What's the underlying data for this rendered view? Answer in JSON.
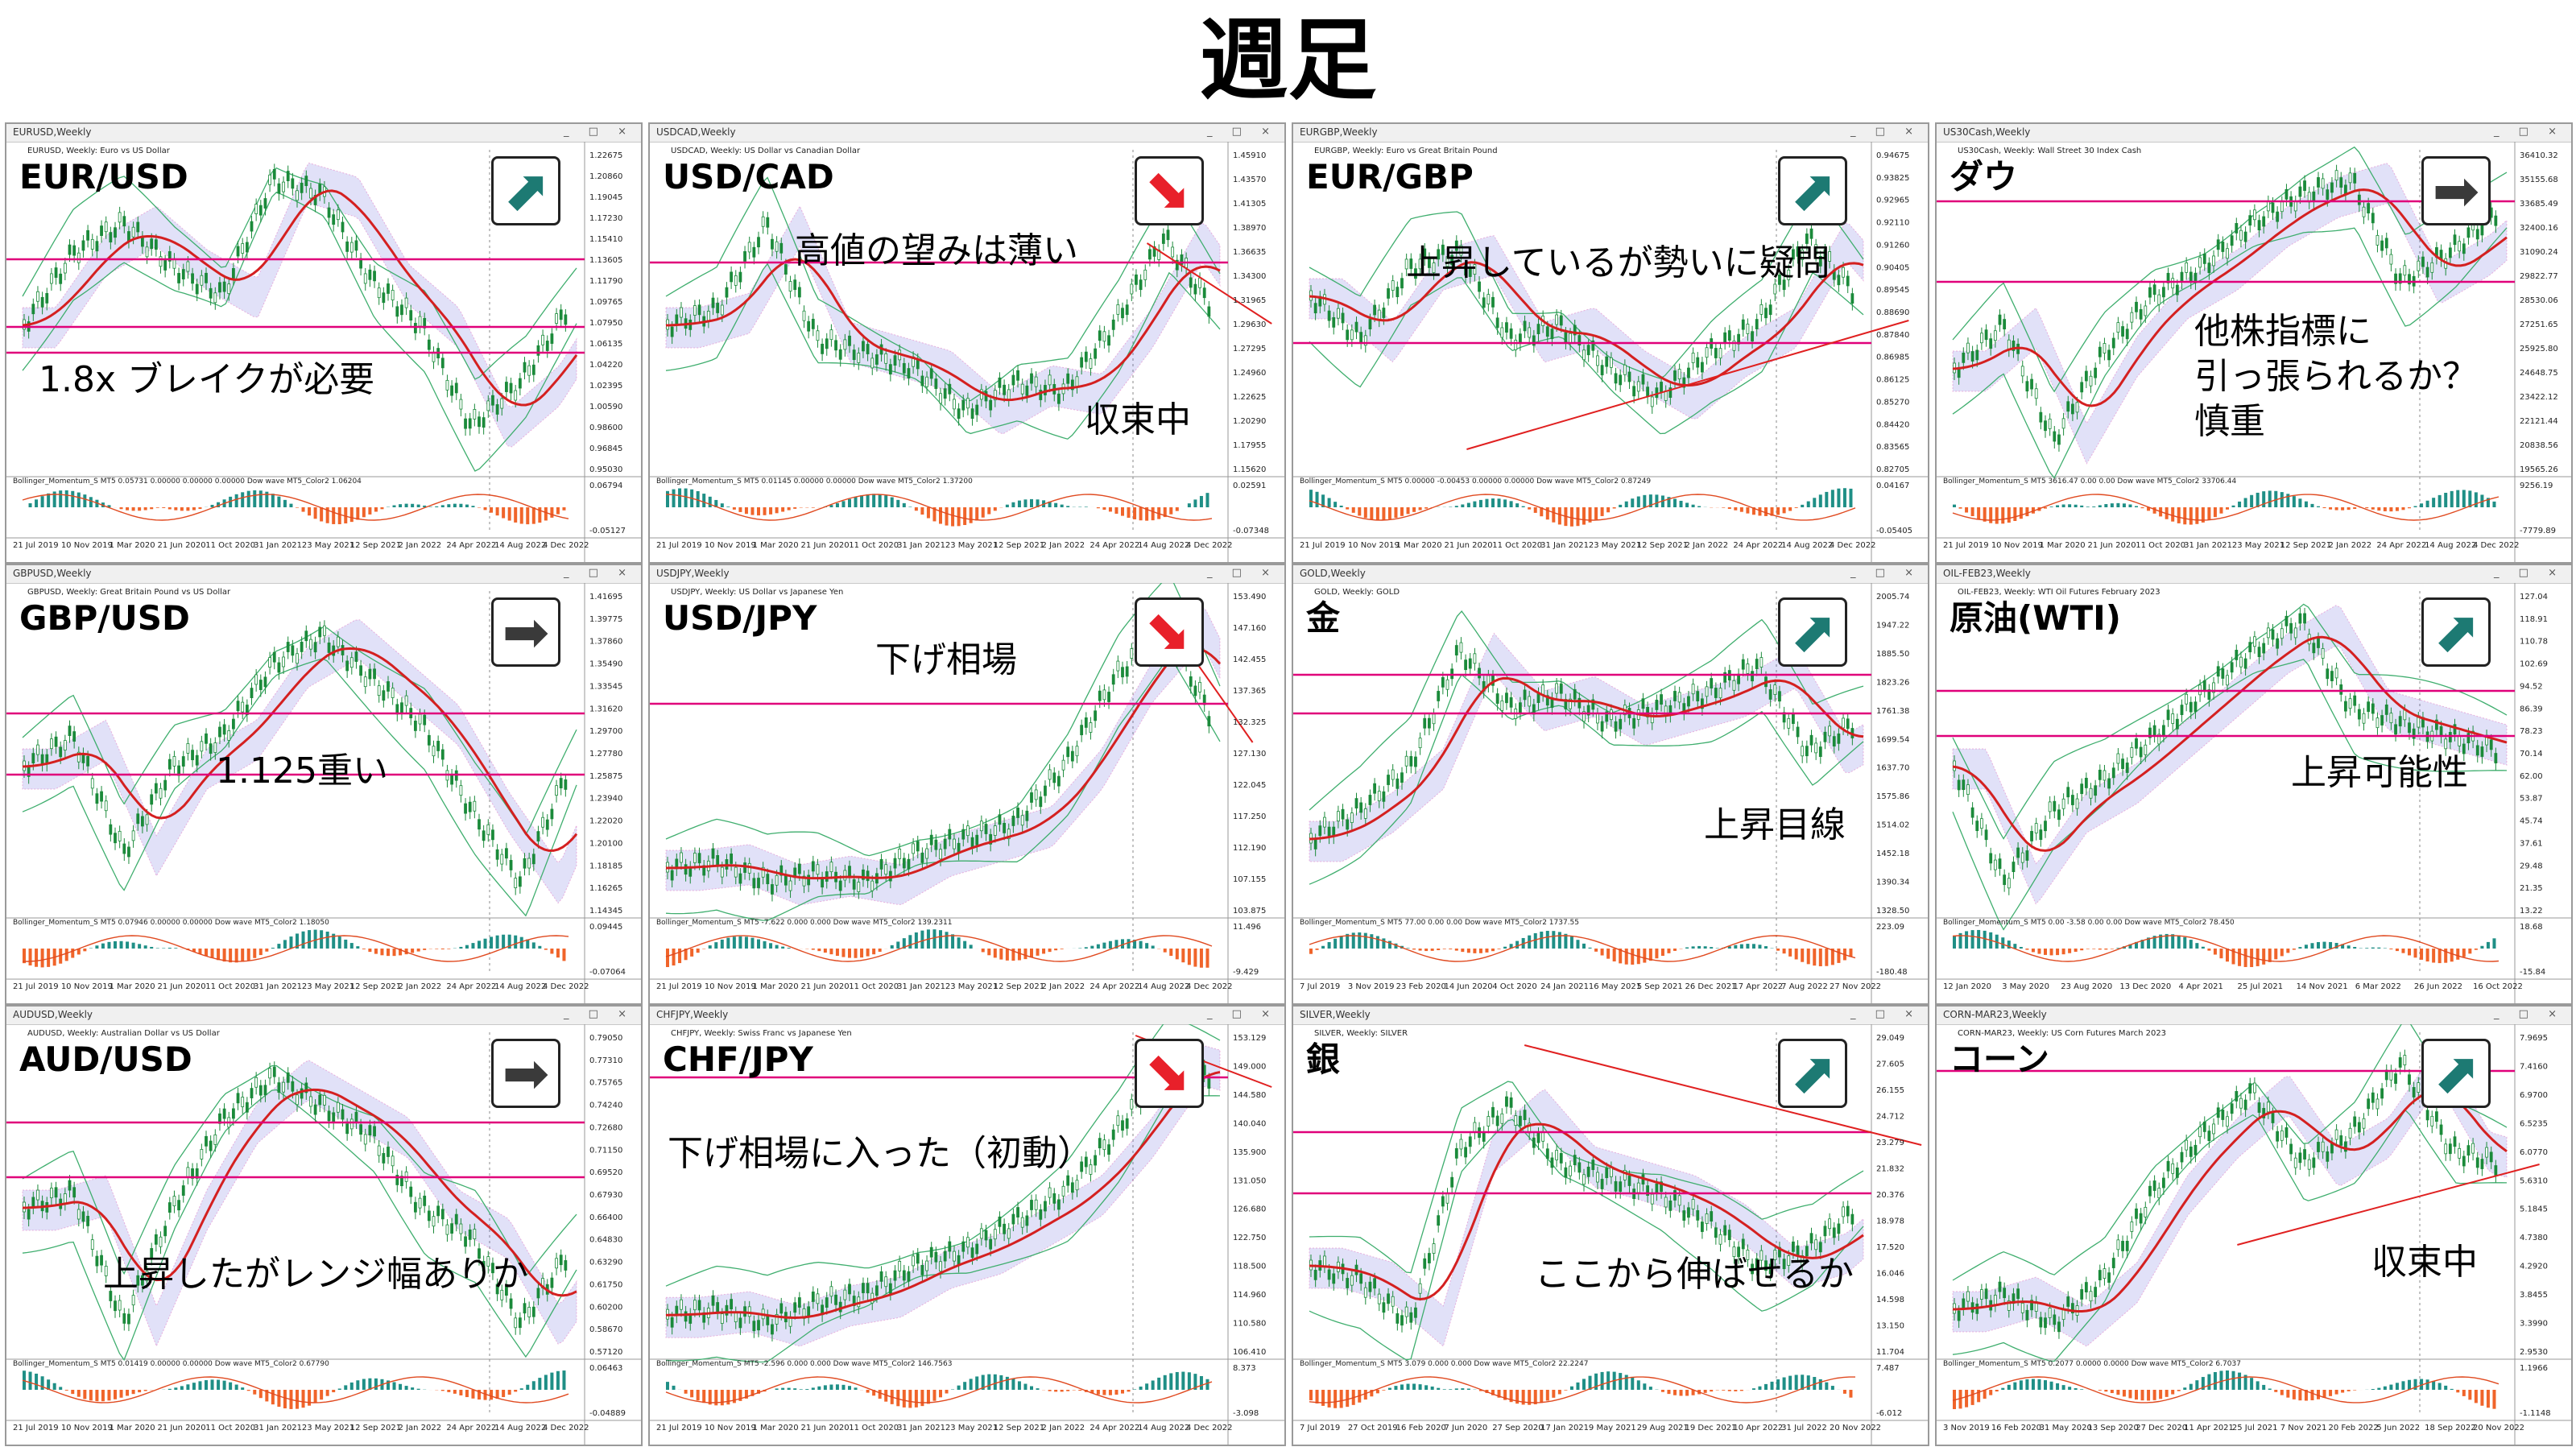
{
  "page_title": "週足",
  "colors": {
    "pink_line": "#e0007a",
    "ma_line": "#d42020",
    "band_line": "#3fae6e",
    "cloud_blue": "#5b5bd6",
    "cloud_pink": "#e070c0",
    "candle": "#1b8a3a",
    "hist_orange": "#f0642a",
    "hist_teal": "#1f8f86",
    "arrow_up": "#1d7a73",
    "arrow_down": "#e8202a",
    "arrow_flat": "#3a3a3a"
  },
  "panels": [
    {
      "window_title": "EURUSD,Weekly",
      "subinfo": "EURUSD, Weekly: Euro vs US Dollar",
      "pair": "EUR/USD",
      "note": "1.8x ブレイクが必要",
      "arrow": "up",
      "indicator": "Bollinger_Momentum_S MT5 0.05731 0.00000 0.00000 0.00000 Dow wave MT5_Color2 1.06204",
      "y_labels": [
        "1.22675",
        "1.20860",
        "1.19045",
        "1.17230",
        "1.15410",
        "1.13605",
        "1.11790",
        "1.09765",
        "1.07950",
        "1.06135",
        "1.04220",
        "1.02395",
        "1.00590",
        "0.98600",
        "0.96845",
        "0.95030"
      ],
      "ind_labels": [
        "0.06794",
        "-0.05127"
      ],
      "x_labels": [
        "21 Jul 2019",
        "10 Nov 2019",
        "1 Mar 2020",
        "21 Jun 2020",
        "11 Oct 2020",
        "31 Jan 2021",
        "23 May 2021",
        "12 Sep 2021",
        "2 Jan 2022",
        "24 Apr 2022",
        "14 Aug 2022",
        "4 Dec 2022"
      ]
    },
    {
      "window_title": "USDCAD,Weekly",
      "subinfo": "USDCAD, Weekly: US Dollar vs Canadian Dollar",
      "pair": "USD/CAD",
      "note": "高値の望みは薄い",
      "note2": "収束中",
      "arrow": "down",
      "indicator": "Bollinger_Momentum_S MT5 0.01145 0.00000 0.00000 Dow wave MT5_Color2 1.37200",
      "y_labels": [
        "1.45910",
        "1.43570",
        "1.41305",
        "1.38970",
        "1.36635",
        "1.34300",
        "1.31965",
        "1.29630",
        "1.27295",
        "1.24960",
        "1.22625",
        "1.20290",
        "1.17955",
        "1.15620"
      ],
      "ind_labels": [
        "0.02591",
        "-0.07348"
      ],
      "x_labels": [
        "21 Jul 2019",
        "10 Nov 2019",
        "1 Mar 2020",
        "21 Jun 2020",
        "11 Oct 2020",
        "31 Jan 2021",
        "23 May 2021",
        "12 Sep 2021",
        "2 Jan 2022",
        "24 Apr 2022",
        "14 Aug 2022",
        "4 Dec 2022"
      ]
    },
    {
      "window_title": "EURGBP,Weekly",
      "subinfo": "EURGBP, Weekly: Euro vs Great Britain Pound",
      "pair": "EUR/GBP",
      "note": "上昇しているが勢いに疑問",
      "arrow": "up",
      "indicator": "Bollinger_Momentum_S MT5 0.00000 -0.00453 0.00000 0.00000 Dow wave MT5_Color2 0.87249",
      "y_labels": [
        "0.94675",
        "0.93825",
        "0.92965",
        "0.92110",
        "0.91260",
        "0.90405",
        "0.89545",
        "0.88690",
        "0.87840",
        "0.86985",
        "0.86125",
        "0.85270",
        "0.84420",
        "0.83565",
        "0.82705"
      ],
      "ind_labels": [
        "0.04167",
        "-0.05405"
      ],
      "x_labels": [
        "21 Jul 2019",
        "10 Nov 2019",
        "1 Mar 2020",
        "21 Jun 2020",
        "11 Oct 2020",
        "31 Jan 2021",
        "23 May 2021",
        "12 Sep 2021",
        "2 Jan 2022",
        "24 Apr 2022",
        "14 Aug 2022",
        "4 Dec 2022"
      ]
    },
    {
      "window_title": "US30Cash,Weekly",
      "subinfo": "US30Cash, Weekly: Wall Street 30 Index Cash",
      "pair": "ダウ",
      "note": "他株指標に\n引っ張られるか？\n慎重",
      "arrow": "flat",
      "indicator": "Bollinger_Momentum_S MT5 3616.47 0.00 0.00 Dow wave MT5_Color2 33706.44",
      "y_labels": [
        "36410.32",
        "35155.68",
        "33685.49",
        "32400.16",
        "31090.24",
        "29822.77",
        "28530.06",
        "27251.65",
        "25925.80",
        "24648.75",
        "23422.12",
        "22121.44",
        "20838.56",
        "19565.26"
      ],
      "ind_labels": [
        "9256.19",
        "-7779.89"
      ],
      "x_labels": [
        "21 Jul 2019",
        "10 Nov 2019",
        "1 Mar 2020",
        "21 Jun 2020",
        "11 Oct 2020",
        "31 Jan 2021",
        "23 May 2021",
        "12 Sep 2021",
        "2 Jan 2022",
        "24 Apr 2022",
        "14 Aug 2022",
        "4 Dec 2022"
      ]
    },
    {
      "window_title": "GBPUSD,Weekly",
      "subinfo": "GBPUSD, Weekly: Great Britain Pound vs US Dollar",
      "pair": "GBP/USD",
      "note": "1.125重い",
      "arrow": "flat",
      "indicator": "Bollinger_Momentum_S MT5 0.07946 0.00000 0.00000 Dow wave MT5_Color2 1.18050",
      "y_labels": [
        "1.41695",
        "1.39775",
        "1.37860",
        "1.35490",
        "1.33545",
        "1.31620",
        "1.29700",
        "1.27780",
        "1.25875",
        "1.23940",
        "1.22020",
        "1.20100",
        "1.18185",
        "1.16265",
        "1.14345"
      ],
      "ind_labels": [
        "0.09445",
        "-0.07064"
      ],
      "x_labels": [
        "21 Jul 2019",
        "10 Nov 2019",
        "1 Mar 2020",
        "21 Jun 2020",
        "11 Oct 2020",
        "31 Jan 2021",
        "23 May 2021",
        "12 Sep 2021",
        "2 Jan 2022",
        "24 Apr 2022",
        "14 Aug 2022",
        "4 Dec 2022"
      ]
    },
    {
      "window_title": "USDJPY,Weekly",
      "subinfo": "USDJPY, Weekly: US Dollar vs Japanese Yen",
      "pair": "USD/JPY",
      "note": "下げ相場",
      "arrow": "down",
      "indicator": "Bollinger_Momentum_S MT5 -7.622 0.000 0.000 Dow wave MT5_Color2 139.2311",
      "y_labels": [
        "153.490",
        "147.160",
        "142.455",
        "137.365",
        "132.325",
        "127.130",
        "122.045",
        "117.250",
        "112.190",
        "107.155",
        "103.875"
      ],
      "ind_labels": [
        "11.496",
        "-9.429"
      ],
      "x_labels": [
        "21 Jul 2019",
        "10 Nov 2019",
        "1 Mar 2020",
        "21 Jun 2020",
        "11 Oct 2020",
        "31 Jan 2021",
        "23 May 2021",
        "12 Sep 2021",
        "2 Jan 2022",
        "24 Apr 2022",
        "14 Aug 2022",
        "4 Dec 2022"
      ]
    },
    {
      "window_title": "GOLD,Weekly",
      "subinfo": "GOLD, Weekly: GOLD",
      "pair": "金",
      "note": "上昇目線",
      "arrow": "up",
      "indicator": "Bollinger_Momentum_S MT5 77.00 0.00 0.00 Dow wave MT5_Color2 1737.55",
      "y_labels": [
        "2005.74",
        "1947.22",
        "1885.50",
        "1823.26",
        "1761.38",
        "1699.54",
        "1637.70",
        "1575.86",
        "1514.02",
        "1452.18",
        "1390.34",
        "1328.50"
      ],
      "ind_labels": [
        "223.09",
        "-180.48"
      ],
      "x_labels": [
        "7 Jul 2019",
        "3 Nov 2019",
        "23 Feb 2020",
        "14 Jun 2020",
        "4 Oct 2020",
        "24 Jan 2021",
        "16 May 2021",
        "5 Sep 2021",
        "26 Dec 2021",
        "17 Apr 2022",
        "7 Aug 2022",
        "27 Nov 2022"
      ]
    },
    {
      "window_title": "OIL-FEB23,Weekly",
      "subinfo": "OIL-FEB23, Weekly: WTI Oil Futures February 2023",
      "pair": "原油(WTI)",
      "note": "上昇可能性",
      "arrow": "up",
      "indicator": "Bollinger_Momentum_S MT5 0.00 -3.58 0.00 0.00 Dow wave MT5_Color2 78.450",
      "y_labels": [
        "127.04",
        "118.91",
        "110.78",
        "102.69",
        "94.52",
        "86.39",
        "78.23",
        "70.14",
        "62.00",
        "53.87",
        "45.74",
        "37.61",
        "29.48",
        "21.35",
        "13.22"
      ],
      "ind_labels": [
        "18.68",
        "-15.84"
      ],
      "x_labels": [
        "12 Jan 2020",
        "3 May 2020",
        "23 Aug 2020",
        "13 Dec 2020",
        "4 Apr 2021",
        "25 Jul 2021",
        "14 Nov 2021",
        "6 Mar 2022",
        "26 Jun 2022",
        "16 Oct 2022"
      ]
    },
    {
      "window_title": "AUDUSD,Weekly",
      "subinfo": "AUDUSD, Weekly: Australian Dollar vs US Dollar",
      "pair": "AUD/USD",
      "note": "上昇したがレンジ幅ありか",
      "arrow": "flat",
      "indicator": "Bollinger_Momentum_S MT5 0.01419 0.00000 0.00000 Dow wave MT5_Color2 0.67790",
      "y_labels": [
        "0.79050",
        "0.77310",
        "0.75765",
        "0.74240",
        "0.72680",
        "0.71150",
        "0.69520",
        "0.67930",
        "0.66400",
        "0.64830",
        "0.63290",
        "0.61750",
        "0.60200",
        "0.58670",
        "0.57120"
      ],
      "ind_labels": [
        "0.06463",
        "-0.04889"
      ],
      "x_labels": [
        "21 Jul 2019",
        "10 Nov 2019",
        "1 Mar 2020",
        "21 Jun 2020",
        "11 Oct 2020",
        "31 Jan 2021",
        "23 May 2021",
        "12 Sep 2021",
        "2 Jan 2022",
        "24 Apr 2022",
        "14 Aug 2022",
        "4 Dec 2022"
      ]
    },
    {
      "window_title": "CHFJPY,Weekly",
      "subinfo": "CHFJPY, Weekly: Swiss Franc vs Japanese Yen",
      "pair": "CHF/JPY",
      "note": "下げ相場に入った（初動）",
      "arrow": "down",
      "indicator": "Bollinger_Momentum_S MT5 -2.596 0.000 0.000 Dow wave MT5_Color2 146.7563",
      "y_labels": [
        "153.129",
        "149.000",
        "144.580",
        "140.040",
        "135.900",
        "131.050",
        "126.680",
        "122.750",
        "118.500",
        "114.960",
        "110.580",
        "106.410"
      ],
      "ind_labels": [
        "8.373",
        "-3.098"
      ],
      "x_labels": [
        "21 Jul 2019",
        "10 Nov 2019",
        "1 Mar 2020",
        "21 Jun 2020",
        "11 Oct 2020",
        "31 Jan 2021",
        "23 May 2021",
        "12 Sep 2021",
        "2 Jan 2022",
        "24 Apr 2022",
        "14 Aug 2022",
        "4 Dec 2022"
      ]
    },
    {
      "window_title": "SILVER,Weekly",
      "subinfo": "SILVER, Weekly: SILVER",
      "pair": "銀",
      "note": "ここから伸ばせるか",
      "arrow": "up",
      "indicator": "Bollinger_Momentum_S MT5 3.079 0.000 0.000 Dow wave MT5_Color2 22.2247",
      "y_labels": [
        "29.049",
        "27.605",
        "26.155",
        "24.712",
        "23.279",
        "21.832",
        "20.376",
        "18.978",
        "17.520",
        "16.046",
        "14.598",
        "13.150",
        "11.704"
      ],
      "ind_labels": [
        "7.487",
        "-6.012"
      ],
      "x_labels": [
        "7 Jul 2019",
        "27 Oct 2019",
        "16 Feb 2020",
        "7 Jun 2020",
        "27 Sep 2020",
        "17 Jan 2021",
        "9 May 2021",
        "29 Aug 2021",
        "19 Dec 2021",
        "10 Apr 2022",
        "31 Jul 2022",
        "20 Nov 2022"
      ]
    },
    {
      "window_title": "CORN-MAR23,Weekly",
      "subinfo": "CORN-MAR23, Weekly: US Corn Futures March 2023",
      "pair": "コーン",
      "note": "収束中",
      "arrow": "up",
      "indicator": "Bollinger_Momentum_S MT5 0.2077 0.0000 0.0000 Dow wave MT5_Color2 6.7037",
      "y_labels": [
        "7.9695",
        "7.4160",
        "6.9700",
        "6.5235",
        "6.0770",
        "5.6310",
        "5.1845",
        "4.7380",
        "4.2920",
        "3.8455",
        "3.3990",
        "2.9530"
      ],
      "ind_labels": [
        "1.1966",
        "-1.1148"
      ],
      "x_labels": [
        "3 Nov 2019",
        "16 Feb 2020",
        "31 May 2020",
        "13 Sep 2020",
        "27 Dec 2020",
        "11 Apr 2021",
        "25 Jul 2021",
        "7 Nov 2021",
        "20 Feb 2022",
        "5 Jun 2022",
        "18 Sep 2022",
        "20 Nov 2022"
      ]
    }
  ]
}
